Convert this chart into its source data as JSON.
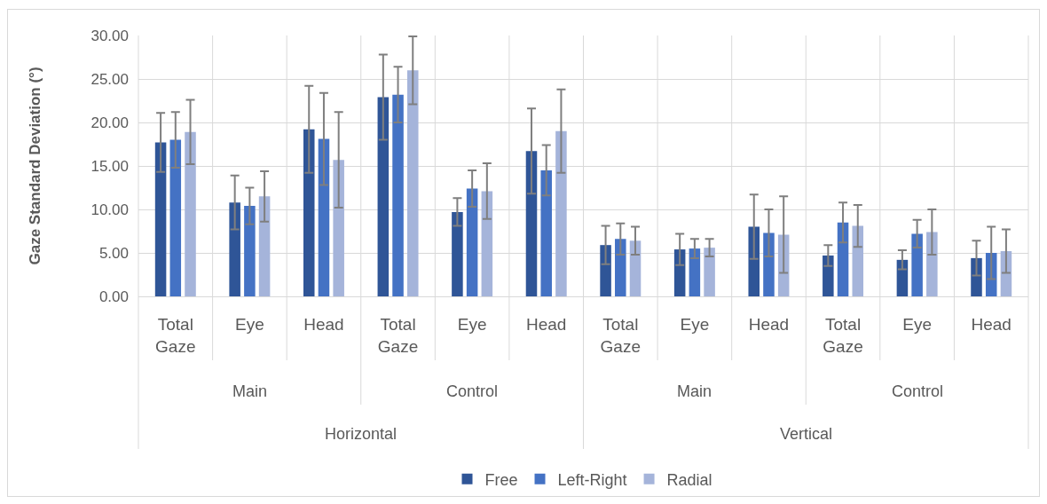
{
  "chart_data": {
    "type": "bar",
    "ylabel": "Gaze Standard Deviation (°)",
    "categories": [
      "Total Gaze",
      "Eye",
      "Head",
      "Total Gaze",
      "Eye",
      "Head",
      "Total Gaze",
      "Eye",
      "Head",
      "Total Gaze",
      "Eye",
      "Head"
    ],
    "annotations": [
      "Main",
      "Control",
      "Main",
      "Control",
      "Horizontal",
      "Vertical"
    ],
    "series": [
      {
        "name": "Free",
        "color": "#2f5597",
        "values": [
          17.7,
          10.8,
          19.2,
          22.9,
          9.7,
          16.7,
          5.9,
          5.4,
          8.0,
          4.7,
          4.2,
          4.4
        ],
        "errors": [
          3.4,
          3.1,
          5.0,
          4.9,
          1.6,
          4.9,
          2.2,
          1.8,
          3.7,
          1.2,
          1.1,
          2.0
        ]
      },
      {
        "name": "Left-Right",
        "color": "#4472c4",
        "values": [
          18.0,
          10.4,
          18.1,
          23.2,
          12.4,
          14.5,
          6.6,
          5.5,
          7.3,
          8.5,
          7.2,
          5.0
        ],
        "errors": [
          3.2,
          2.1,
          5.3,
          3.2,
          2.1,
          2.9,
          1.8,
          1.1,
          2.7,
          2.3,
          1.6,
          3.0
        ]
      },
      {
        "name": "Radial",
        "color": "#a5b4da",
        "values": [
          18.9,
          11.5,
          15.7,
          26.0,
          12.1,
          19.0,
          6.4,
          5.6,
          7.1,
          8.1,
          7.4,
          5.2
        ],
        "errors": [
          3.7,
          2.9,
          5.5,
          3.9,
          3.2,
          4.8,
          1.6,
          1.0,
          4.4,
          2.4,
          2.6,
          2.5
        ]
      }
    ],
    "ylim": [
      0,
      30
    ],
    "yticks": [
      {
        "value": 0,
        "label": "0.00"
      },
      {
        "value": 5,
        "label": "5.00"
      },
      {
        "value": 10,
        "label": "10.00"
      },
      {
        "value": 15,
        "label": "15.00"
      },
      {
        "value": 20,
        "label": "20.00"
      },
      {
        "value": 25,
        "label": "25.00"
      },
      {
        "value": 30,
        "label": "30.00"
      }
    ],
    "grid": true,
    "legend": "bottom"
  }
}
